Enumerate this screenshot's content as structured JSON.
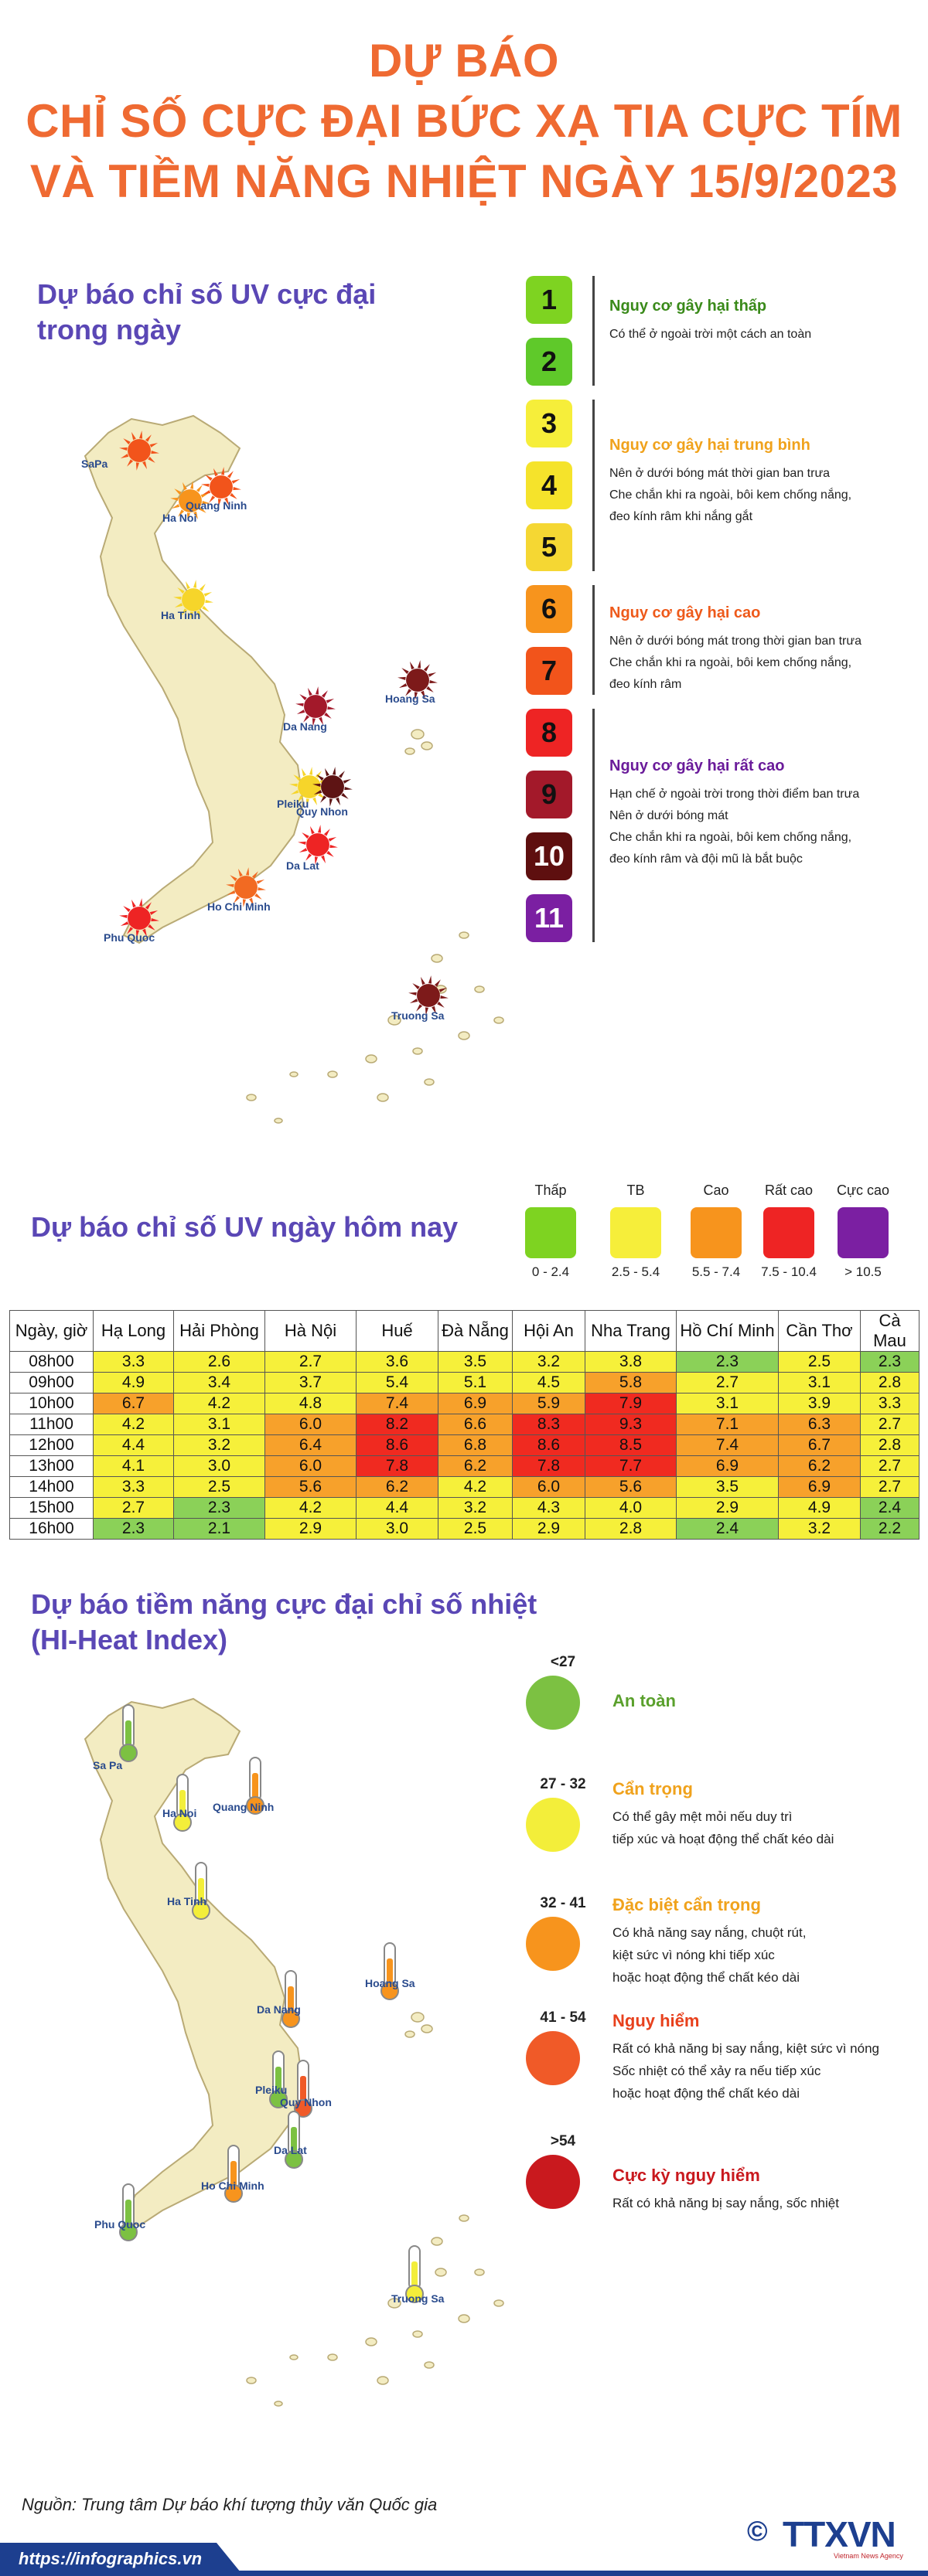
{
  "header": {
    "line1": "DỰ BÁO",
    "line2": "CHỈ SỐ CỰC ĐẠI BỨC XẠ TIA CỰC TÍM",
    "line3": "VÀ TIỀM NĂNG NHIỆT NGÀY 15/9/2023"
  },
  "uv_map": {
    "title_line1": "Dự báo chỉ số UV cực đại",
    "title_line2": "trong ngày",
    "cities": [
      "SaPa",
      "Ha Noi",
      "Quang Ninh",
      "Ha Tinh",
      "Da Nang",
      "Hoang Sa",
      "Pleiku",
      "Quy Nhon",
      "Da Lat",
      "Ho Chi Minh",
      "Phu Quoc",
      "Truong Sa"
    ],
    "sun_colors": {
      "SaPa": "#f2541b",
      "Ha Noi": "#f7941d",
      "Quang Ninh": "#f2541b",
      "Ha Tinh": "#f6d52a",
      "Da Nang": "#a3192a",
      "Hoang Sa": "#7d1a1a",
      "Pleiku": "#f6d52a",
      "Quy Nhon": "#5e1414",
      "Da Lat": "#ee2424",
      "Ho Chi Minh": "#f26a22",
      "Phu Quoc": "#ee2424",
      "Truong Sa": "#7d1a1a"
    }
  },
  "uv_levels": {
    "levels": [
      {
        "n": "1",
        "color": "#7ed321"
      },
      {
        "n": "2",
        "color": "#5fc92a"
      },
      {
        "n": "3",
        "color": "#f6ee3a"
      },
      {
        "n": "4",
        "color": "#f5e32b"
      },
      {
        "n": "5",
        "color": "#f5d733"
      },
      {
        "n": "6",
        "color": "#f7941d"
      },
      {
        "n": "7",
        "color": "#f2541b"
      },
      {
        "n": "8",
        "color": "#ee2424"
      },
      {
        "n": "9",
        "color": "#a3192a"
      },
      {
        "n": "10",
        "color": "#5e0f0f"
      },
      {
        "n": "11",
        "color": "#7b1fa2"
      }
    ],
    "groups": [
      {
        "title": "Nguy cơ gây hại thấp",
        "color": "#3a8a1a",
        "lines": [
          "Có thể ở ngoài trời một cách an toàn"
        ]
      },
      {
        "title": "Nguy cơ gây hại trung bình",
        "color": "#f0a21c",
        "lines": [
          "Nên ở dưới bóng mát thời gian ban trưa",
          "Che chắn khi ra ngoài, bôi kem chống nắng,",
          "đeo kính râm khi nắng gắt"
        ]
      },
      {
        "title": "Nguy cơ gây hại cao",
        "color": "#ee5a1b",
        "lines": [
          "Nên ở dưới bóng mát trong thời gian ban trưa",
          "Che chắn khi ra ngoài, bôi kem chống nắng,",
          "đeo kính râm"
        ]
      },
      {
        "title": "Nguy cơ gây hại rất cao",
        "color": "#6a1b9a",
        "lines": [
          "Hạn chế ở ngoài trời trong thời điểm ban trưa",
          "Nên ở dưới bóng mát",
          "Che chắn khi ra ngoài, bôi kem chống nắng,",
          "đeo kính râm và đội mũ là bắt buộc"
        ]
      }
    ]
  },
  "uv_today": {
    "title": "Dự báo chỉ số UV ngày hôm nay",
    "categories": [
      {
        "label": "Thấp",
        "range": "0 - 2.4",
        "color": "#7ed321"
      },
      {
        "label": "TB",
        "range": "2.5 - 5.4",
        "color": "#f6ee3a"
      },
      {
        "label": "Cao",
        "range": "5.5 - 7.4",
        "color": "#f7941d"
      },
      {
        "label": "Rất cao",
        "range": "7.5 - 10.4",
        "color": "#ee2424"
      },
      {
        "label": "Cực cao",
        "range": "> 10.5",
        "color": "#7b1fa2"
      }
    ]
  },
  "table": {
    "columns": [
      "Ngày, giờ",
      "Hạ Long",
      "Hải Phòng",
      "Hà Nội",
      "Huế",
      "Đà Nẵng",
      "Hội An",
      "Nha Trang",
      "Hồ Chí Minh",
      "Cần Thơ",
      "Cà Mau"
    ],
    "rows": [
      {
        "time": "08h00",
        "values": [
          "3.3",
          "2.6",
          "2.7",
          "3.6",
          "3.5",
          "3.2",
          "3.8",
          "2.3",
          "2.5",
          "2.3"
        ]
      },
      {
        "time": "09h00",
        "values": [
          "4.9",
          "3.4",
          "3.7",
          "5.4",
          "5.1",
          "4.5",
          "5.8",
          "2.7",
          "3.1",
          "2.8"
        ]
      },
      {
        "time": "10h00",
        "values": [
          "6.7",
          "4.2",
          "4.8",
          "7.4",
          "6.9",
          "5.9",
          "7.9",
          "3.1",
          "3.9",
          "3.3"
        ]
      },
      {
        "time": "11h00",
        "values": [
          "4.2",
          "3.1",
          "6.0",
          "8.2",
          "6.6",
          "8.3",
          "9.3",
          "7.1",
          "6.3",
          "2.7"
        ]
      },
      {
        "time": "12h00",
        "values": [
          "4.4",
          "3.2",
          "6.4",
          "8.6",
          "6.8",
          "8.6",
          "8.5",
          "7.4",
          "6.7",
          "2.8"
        ]
      },
      {
        "time": "13h00",
        "values": [
          "4.1",
          "3.0",
          "6.0",
          "7.8",
          "6.2",
          "7.8",
          "7.7",
          "6.9",
          "6.2",
          "2.7"
        ]
      },
      {
        "time": "14h00",
        "values": [
          "3.3",
          "2.5",
          "5.6",
          "6.2",
          "4.2",
          "6.0",
          "5.6",
          "3.5",
          "6.9",
          "2.7"
        ]
      },
      {
        "time": "15h00",
        "values": [
          "2.7",
          "2.3",
          "4.2",
          "4.4",
          "3.2",
          "4.3",
          "4.0",
          "2.9",
          "4.9",
          "2.4"
        ]
      },
      {
        "time": "16h00",
        "values": [
          "2.3",
          "2.1",
          "2.9",
          "3.0",
          "2.5",
          "2.9",
          "2.8",
          "2.4",
          "3.2",
          "2.2"
        ]
      }
    ]
  },
  "heat": {
    "title_line1": "Dự báo tiềm năng cực đại chỉ số nhiệt",
    "title_line2": "(HI-Heat Index)",
    "levels": [
      {
        "range": "<27",
        "title": "An toàn",
        "color": "#7cc142",
        "title_color": "#5aa02c",
        "lines": []
      },
      {
        "range": "27 - 32",
        "title": "Cẩn trọng",
        "color": "#f3ee3a",
        "title_color": "#f0a21c",
        "lines": [
          "Có thể gây mệt mỏi nếu duy trì",
          "tiếp xúc và hoạt động thể chất kéo dài"
        ]
      },
      {
        "range": "32 - 41",
        "title": "Đặc biệt cẩn trọng",
        "color": "#f7941d",
        "title_color": "#f0a21c",
        "lines": [
          "Có khả năng say nắng, chuột rút,",
          "kiệt sức vì nóng khi tiếp xúc",
          "hoặc hoạt động thể chất kéo dài"
        ]
      },
      {
        "range": "41 - 54",
        "title": "Nguy hiểm",
        "color": "#f05a28",
        "title_color": "#e8401c",
        "lines": [
          "Rất có khả năng bị say nắng, kiệt sức vì nóng",
          "Sốc nhiệt có thể xảy ra nếu tiếp xúc",
          "hoặc hoạt động thể chất kéo dài"
        ]
      },
      {
        "range": ">54",
        "title": "Cực kỳ nguy hiểm",
        "color": "#c9191e",
        "title_color": "#c9191e",
        "lines": [
          "Rất có khả năng bị say nắng, sốc nhiệt"
        ]
      }
    ],
    "cities": [
      "Sa Pa",
      "Ha Noi",
      "Quang Ninh",
      "Ha Tinh",
      "Da Nang",
      "Hoang Sa",
      "Pleiku",
      "Quy Nhon",
      "Da Lat",
      "Ho Chi Minh",
      "Phu Quoc",
      "Truong Sa"
    ],
    "thermo_colors": {
      "Sa Pa": "#7cc142",
      "Ha Noi": "#f3ee3a",
      "Quang Ninh": "#f7941d",
      "Ha Tinh": "#f3ee3a",
      "Da Nang": "#f7941d",
      "Hoang Sa": "#f7941d",
      "Pleiku": "#7cc142",
      "Quy Nhon": "#f05a28",
      "Da Lat": "#7cc142",
      "Ho Chi Minh": "#f7941d",
      "Phu Quoc": "#7cc142",
      "Truong Sa": "#f3ee3a"
    }
  },
  "footer": {
    "source": "Nguồn: Trung tâm Dự báo khí tượng thủy văn Quốc gia",
    "url": "https://infographics.vn",
    "logo": "TTXVN",
    "logo_sub": "Vietnam News Agency",
    "copyright": "©"
  }
}
